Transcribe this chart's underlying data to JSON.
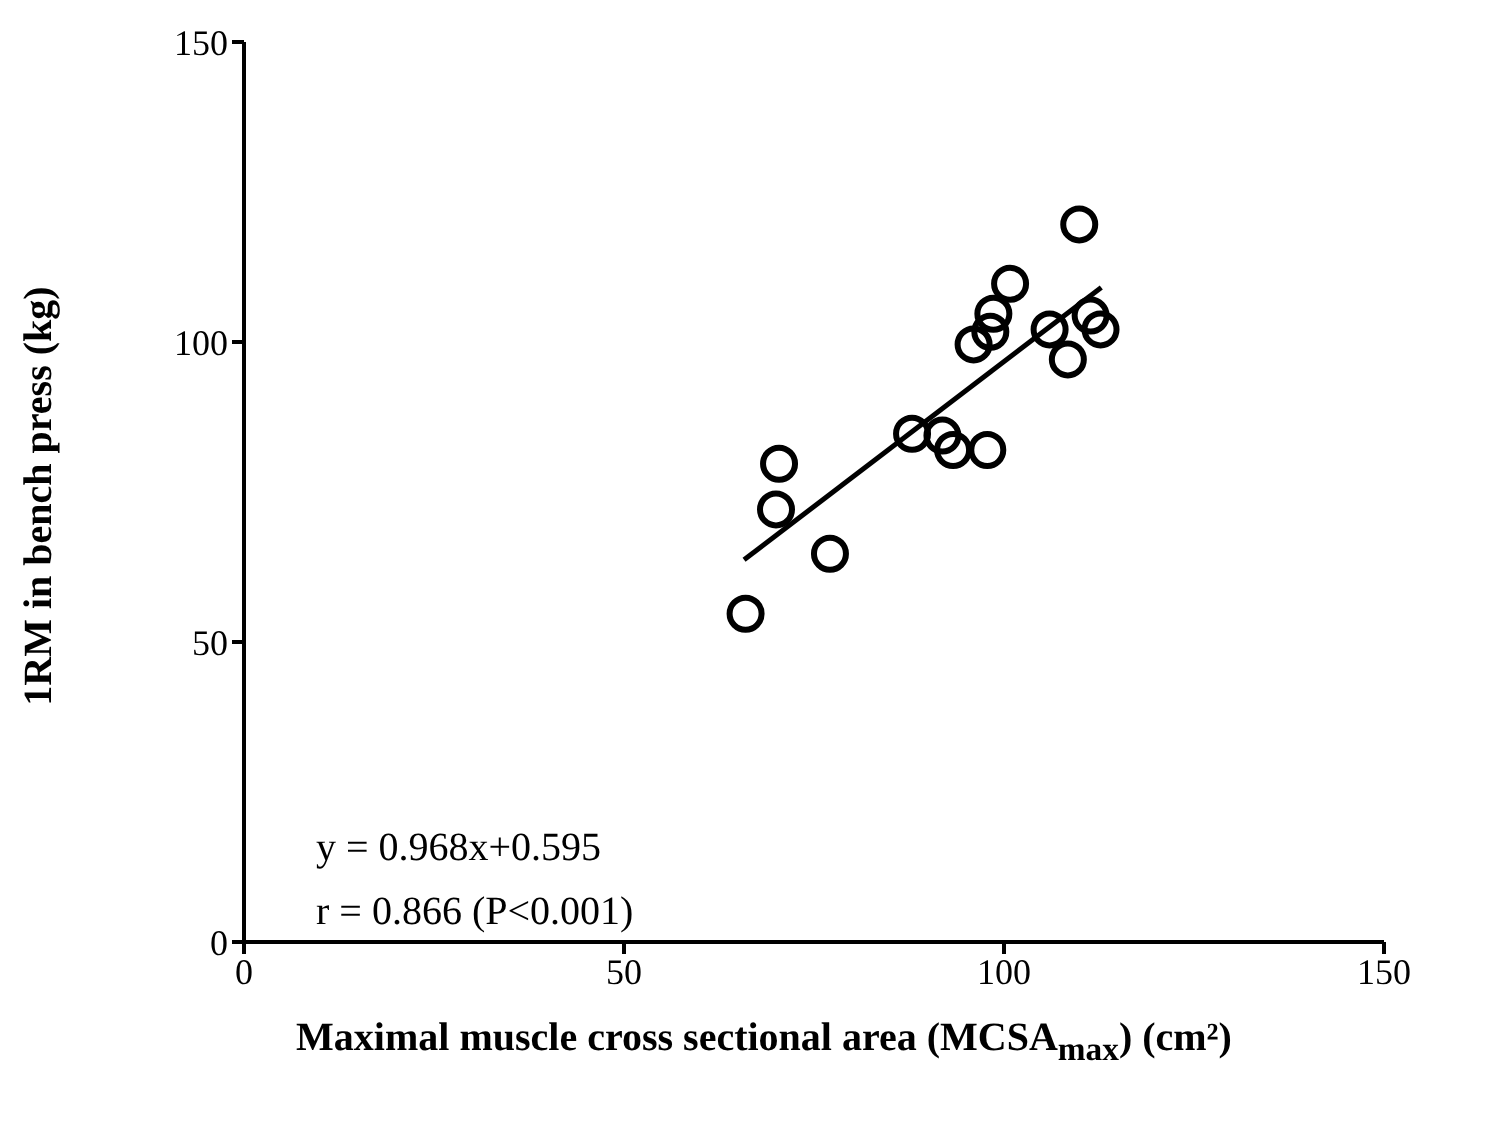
{
  "chart_data": {
    "type": "scatter",
    "xlabel": "Maximal muscle cross sectional area (MCSA$_{max}$) (cm²)",
    "ylabel": "1RM in bench press (kg)",
    "annotations": [
      "y = 0.968x+0.595",
      "r = 0.866 (P<0.001)"
    ],
    "xlim": [
      0,
      150
    ],
    "xticks": [
      0,
      50,
      100,
      150
    ],
    "ylim": [
      0,
      150
    ],
    "yticks": [
      0,
      50,
      100,
      150
    ],
    "grid": false,
    "legend": false,
    "series": [
      {
        "marker": "circle",
        "color": "#000000",
        "x": [
          66.0,
          70.0,
          70.4,
          77.1,
          87.9,
          91.9,
          93.3,
          97.8,
          96.0,
          98.2,
          98.6,
          100.8,
          106.0,
          108.4,
          109.9,
          111.4,
          112.7
        ],
        "values": [
          54.7,
          72.1,
          79.7,
          64.7,
          84.7,
          84.4,
          82.0,
          82.0,
          99.6,
          101.7,
          104.7,
          109.7,
          102.1,
          97.1,
          119.6,
          104.4,
          102.1
        ]
      },
      {
        "type": "line",
        "color": "#000000",
        "line_style": "solid",
        "x": [
          65.8,
          112.8
        ],
        "values": [
          63.7,
          109.1
        ]
      }
    ]
  }
}
